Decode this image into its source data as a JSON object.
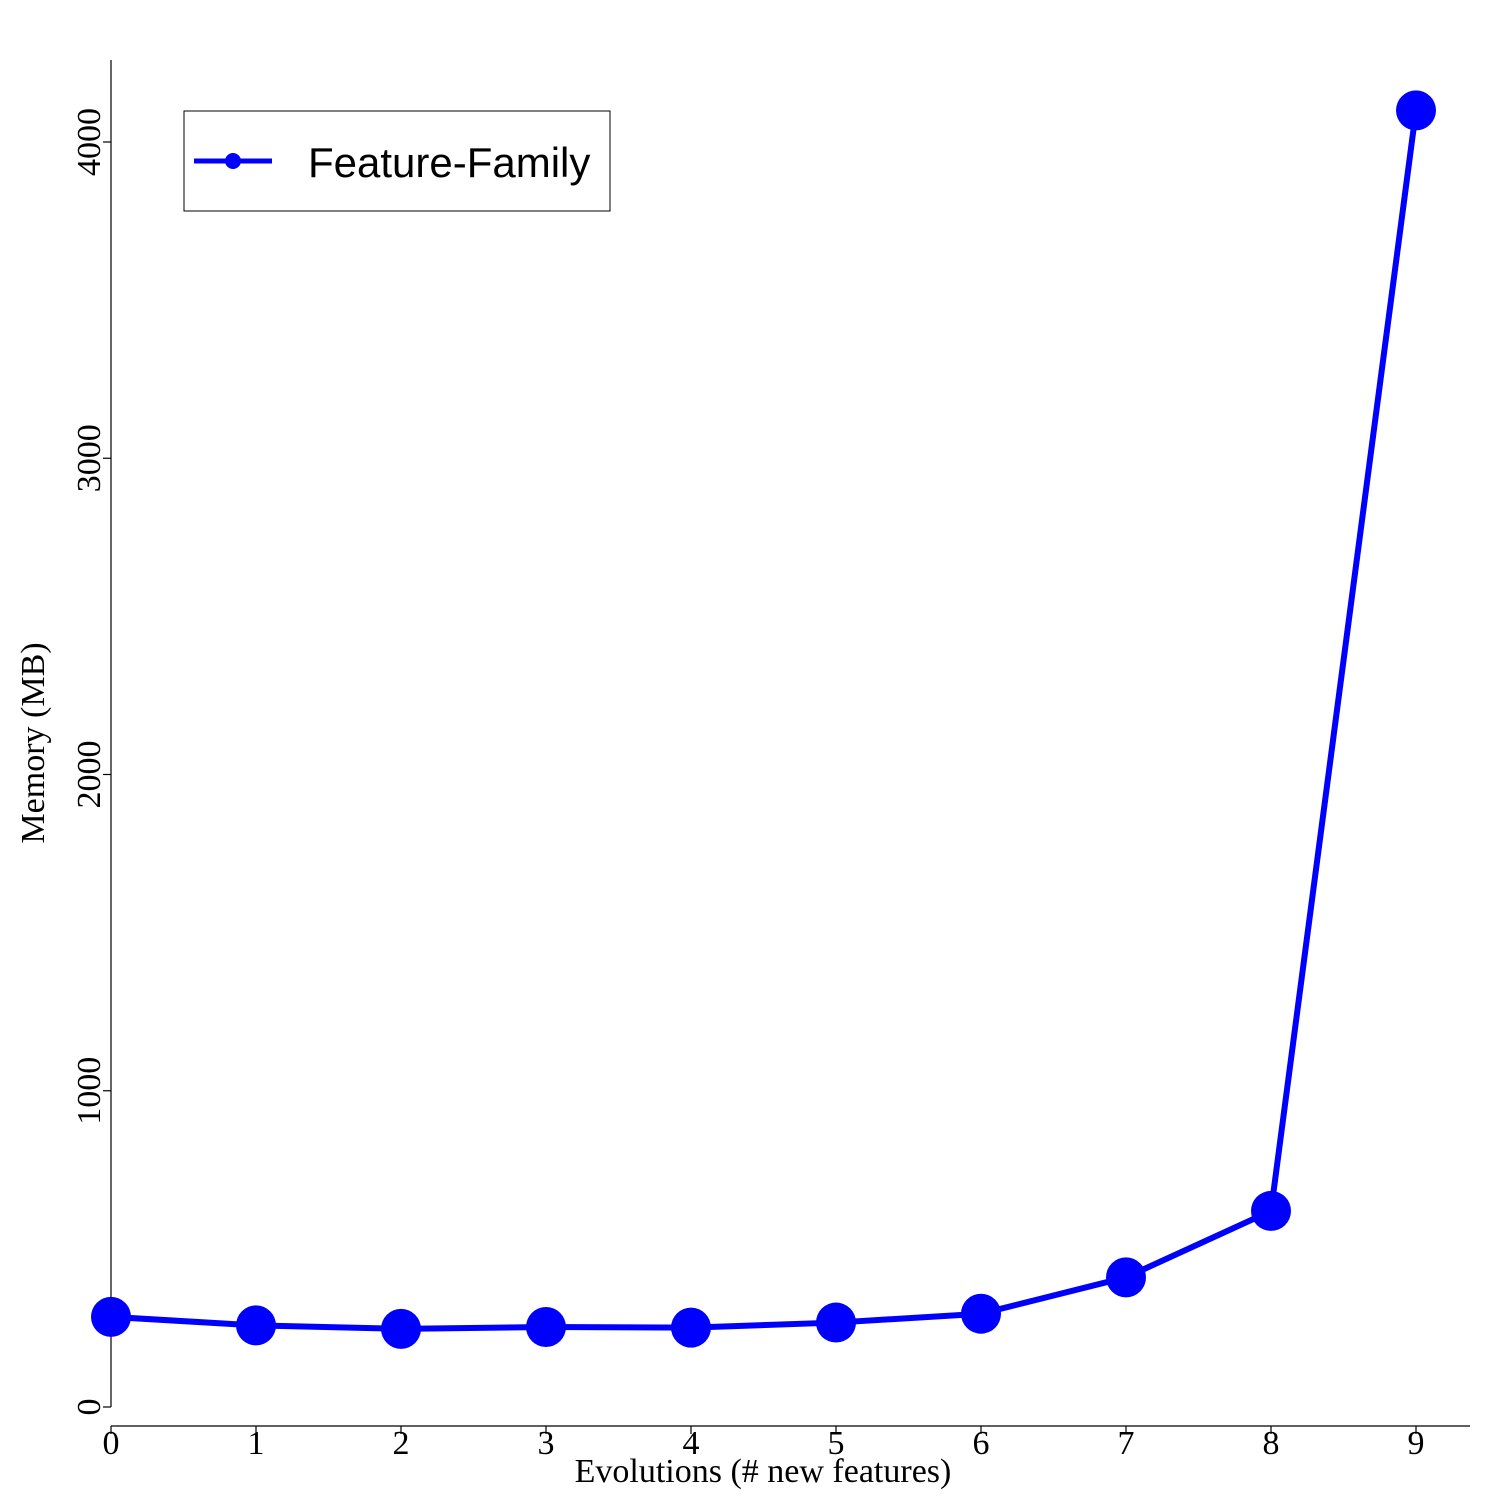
{
  "chart_data": {
    "type": "line",
    "x": [
      0,
      1,
      2,
      3,
      4,
      5,
      6,
      7,
      8,
      9
    ],
    "series": [
      {
        "name": "Feature-Family",
        "values": [
          285,
          258,
          247,
          253,
          251,
          267,
          295,
          410,
          620,
          4100
        ],
        "color": "#0000ff",
        "marker": "circle"
      }
    ],
    "xlabel": "Evolutions (# new features)",
    "ylabel": "Memory (MB)",
    "xlim": [
      0,
      9.4
    ],
    "ylim": [
      0,
      4260
    ],
    "xticks": [
      "0",
      "1",
      "2",
      "3",
      "4",
      "5",
      "6",
      "7",
      "8",
      "9"
    ],
    "yticks": [
      "0",
      "1000",
      "2000",
      "3000",
      "4000"
    ],
    "ytick_values": [
      0,
      1000,
      2000,
      3000,
      4000
    ],
    "grid": false,
    "legend_position": "top-left"
  }
}
